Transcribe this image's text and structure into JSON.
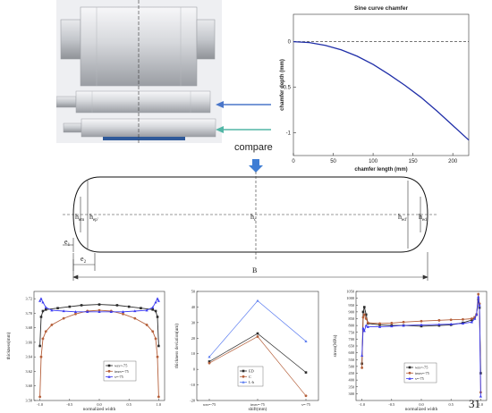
{
  "colors": {
    "roll_light": "#e6e6ea",
    "roll_mid": "#b9bcc2",
    "roll_dark": "#8e9196",
    "roll_bg": "#f0f0f3",
    "blue_strip": "#2f5a9a",
    "arrow_blue": "#4a76c9",
    "arrow_teal": "#52b6a6",
    "chart_line": "#1f2ea8",
    "compare_arrow": "#3f7dd4",
    "ser_black": "#2b2b2b",
    "ser_brown": "#b5603b",
    "ser_blue": "#3b3bf0"
  },
  "compare_label": "compare",
  "page_number": "31",
  "profile": {
    "labels": {
      "hem": "h",
      "hem_sub": "em",
      "hep": "h",
      "hep_sub": "ep'",
      "hc": "h",
      "hc_sub": "c",
      "hed": "h",
      "hed_sub": "ed'",
      "hee": "h",
      "hee_sub": "ed",
      "e1": "e",
      "e1_sub": "1",
      "e2": "e",
      "e2_sub": "2",
      "B": "B"
    }
  },
  "chart_data": [
    {
      "type": "line",
      "title": "Sine curve chamfer",
      "xlabel": "chamfer length (mm)",
      "ylabel": "chamfer depth (mm)",
      "xlim": [
        0,
        220
      ],
      "ylim": [
        -1.25,
        0.3
      ],
      "xticks": [
        "0",
        "50",
        "100",
        "150",
        "200"
      ],
      "yticks": [
        "0",
        "-0.5",
        "-1"
      ],
      "reference_line_y": 0,
      "series": [
        {
          "x": [
            0,
            20,
            40,
            60,
            80,
            100,
            120,
            140,
            160,
            180,
            200,
            220
          ],
          "y": [
            0,
            -0.01,
            -0.04,
            -0.09,
            -0.16,
            -0.25,
            -0.36,
            -0.48,
            -0.61,
            -0.76,
            -0.92,
            -1.08
          ]
        }
      ]
    },
    {
      "type": "line",
      "xlabel": "normalized width",
      "ylabel": "thickness(mm)",
      "xlim": [
        -1.1,
        1.1
      ],
      "ylim": [
        3.58,
        3.73
      ],
      "xticks": [
        "-1.0",
        "-0.5",
        "0.0",
        "0.5",
        "1.0"
      ],
      "yticks": [
        "3.58",
        "3.60",
        "3.62",
        "3.64",
        "3.66",
        "3.68",
        "3.70",
        "3.72"
      ],
      "series": [
        {
          "name": "wrs=-75",
          "x": [
            -1.0,
            -0.98,
            -0.95,
            -0.9,
            -0.7,
            -0.5,
            -0.3,
            0.0,
            0.3,
            0.5,
            0.7,
            0.9,
            0.95,
            0.98,
            1.0
          ],
          "y": [
            3.655,
            3.695,
            3.703,
            3.705,
            3.707,
            3.709,
            3.711,
            3.712,
            3.711,
            3.709,
            3.707,
            3.705,
            3.703,
            3.695,
            3.655
          ]
        },
        {
          "name": "imrs=-75",
          "x": [
            -1.0,
            -0.98,
            -0.95,
            -0.9,
            -0.8,
            -0.6,
            -0.4,
            -0.2,
            0.0,
            0.2,
            0.4,
            0.6,
            0.8,
            0.9,
            0.95,
            0.98,
            1.0
          ],
          "y": [
            3.585,
            3.64,
            3.665,
            3.675,
            3.684,
            3.693,
            3.699,
            3.703,
            3.704,
            3.703,
            3.699,
            3.693,
            3.684,
            3.675,
            3.665,
            3.64,
            3.585
          ]
        },
        {
          "name": "s=-75",
          "x": [
            -1.0,
            -0.98,
            -0.95,
            -0.9,
            -0.8,
            -0.6,
            -0.4,
            -0.2,
            0.0,
            0.2,
            0.4,
            0.6,
            0.8,
            0.9,
            0.95,
            0.98,
            1.0
          ],
          "y": [
            3.717,
            3.72,
            3.715,
            3.708,
            3.704,
            3.703,
            3.702,
            3.702,
            3.702,
            3.702,
            3.702,
            3.703,
            3.704,
            3.708,
            3.715,
            3.72,
            3.717
          ]
        }
      ]
    },
    {
      "type": "line",
      "xlabel": "shift(mm)",
      "ylabel": "thickness deviation(um)",
      "categories": [
        "wrs=-75",
        "imrs=-75",
        "s=-75"
      ],
      "ylim": [
        -20,
        50
      ],
      "yticks": [
        "-20",
        "-10",
        "0",
        "10",
        "20",
        "30",
        "40",
        "50"
      ],
      "series": [
        {
          "name": "ED",
          "values": [
            5,
            23,
            -2
          ]
        },
        {
          "name": "C",
          "values": [
            4,
            21,
            -17
          ]
        },
        {
          "name": "L-h",
          "values": [
            8,
            44,
            18
          ]
        }
      ]
    },
    {
      "type": "line",
      "xlabel": "normalized width",
      "ylabel": "stress(MPa)",
      "xlim": [
        -1.1,
        1.1
      ],
      "ylim": [
        250,
        1050
      ],
      "xticks": [
        "-1.0",
        "-0.5",
        "0.0",
        "0.5",
        "1.0"
      ],
      "yticks": [
        "300",
        "350",
        "400",
        "450",
        "500",
        "550",
        "600",
        "650",
        "700",
        "750",
        "800",
        "850",
        "900",
        "950",
        "1000",
        "1050"
      ],
      "series": [
        {
          "name": "wrs=-75",
          "x": [
            -1.0,
            -0.98,
            -0.96,
            -0.93,
            -0.9,
            -0.7,
            -0.5,
            -0.3,
            0.0,
            0.3,
            0.5,
            0.7,
            0.85,
            0.9,
            0.93,
            0.96,
            0.98,
            1.0
          ],
          "y": [
            520,
            900,
            935,
            880,
            815,
            805,
            800,
            800,
            795,
            800,
            805,
            820,
            840,
            860,
            880,
            990,
            930,
            450
          ]
        },
        {
          "name": "imrs=-75",
          "x": [
            -1.0,
            -0.98,
            -0.96,
            -0.93,
            -0.9,
            -0.7,
            -0.5,
            -0.3,
            0.0,
            0.3,
            0.5,
            0.7,
            0.85,
            0.9,
            0.93,
            0.96,
            0.98,
            1.0
          ],
          "y": [
            490,
            860,
            880,
            850,
            820,
            815,
            818,
            825,
            832,
            838,
            842,
            845,
            850,
            860,
            880,
            1030,
            960,
            310
          ]
        },
        {
          "name": "s=-75",
          "x": [
            -1.0,
            -0.98,
            -0.96,
            -0.93,
            -0.9,
            -0.7,
            -0.5,
            -0.3,
            0.0,
            0.3,
            0.5,
            0.7,
            0.85,
            0.9,
            0.93,
            0.96,
            0.98,
            1.0
          ],
          "y": [
            580,
            780,
            760,
            800,
            790,
            790,
            795,
            800,
            805,
            808,
            810,
            815,
            825,
            850,
            880,
            1010,
            950,
            280
          ]
        }
      ]
    }
  ]
}
